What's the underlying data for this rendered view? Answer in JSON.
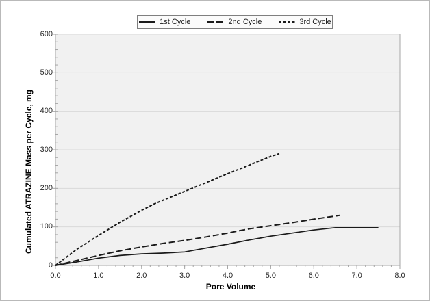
{
  "window": {
    "background": "#ffffff",
    "frame_border_color": "#b9b9b9"
  },
  "chart_data": {
    "type": "line",
    "title": "",
    "xlabel": "Pore Volume",
    "ylabel": "Cumulated ATRAZINE Mass per Cycle, mg",
    "xlim": [
      0,
      8
    ],
    "ylim": [
      0,
      600
    ],
    "xticks": [
      "0.0",
      "1.0",
      "2.0",
      "3.0",
      "4.0",
      "5.0",
      "6.0",
      "7.0",
      "8.0"
    ],
    "yticks": [
      "0",
      "100",
      "200",
      "300",
      "400",
      "500",
      "600"
    ],
    "x_minor_step": 0.2,
    "y_minor_step": 20,
    "grid": "horizontal-major-only",
    "legend_position": "top-center",
    "plot_bg": "#f1f1f1",
    "gridline_color": "#d9d9d9",
    "axis_color": "#a6a6a6",
    "series_color": "#1a1a1a",
    "series": [
      {
        "name": "1st Cycle",
        "style": "solid",
        "dash": null,
        "width": 1.7,
        "points": [
          [
            0,
            0
          ],
          [
            0.5,
            9
          ],
          [
            1,
            19
          ],
          [
            1.5,
            26
          ],
          [
            2,
            30
          ],
          [
            2.5,
            32
          ],
          [
            3,
            35
          ],
          [
            3.5,
            45
          ],
          [
            4,
            55
          ],
          [
            4.5,
            66
          ],
          [
            5,
            76
          ],
          [
            5.5,
            84
          ],
          [
            6,
            92
          ],
          [
            6.5,
            98
          ],
          [
            7,
            98
          ],
          [
            7.5,
            98
          ]
        ]
      },
      {
        "name": "2nd Cycle",
        "style": "dashed",
        "dash": "9 4",
        "width": 2,
        "points": [
          [
            0,
            0
          ],
          [
            0.5,
            13
          ],
          [
            1,
            26
          ],
          [
            1.5,
            38
          ],
          [
            2,
            48
          ],
          [
            2.5,
            57
          ],
          [
            3,
            65
          ],
          [
            3.5,
            74
          ],
          [
            4,
            84
          ],
          [
            4.5,
            95
          ],
          [
            5,
            103
          ],
          [
            5.5,
            111
          ],
          [
            6,
            120
          ],
          [
            6.6,
            130
          ]
        ]
      },
      {
        "name": "3rd Cycle",
        "style": "dotted",
        "dash": "4 2.5",
        "width": 2,
        "points": [
          [
            0,
            0
          ],
          [
            0.5,
            42
          ],
          [
            1,
            78
          ],
          [
            1.5,
            112
          ],
          [
            2,
            143
          ],
          [
            2.3,
            160
          ],
          [
            3,
            192
          ],
          [
            3.5,
            215
          ],
          [
            4,
            238
          ],
          [
            4.5,
            260
          ],
          [
            5,
            283
          ],
          [
            5.2,
            290
          ]
        ]
      }
    ]
  }
}
